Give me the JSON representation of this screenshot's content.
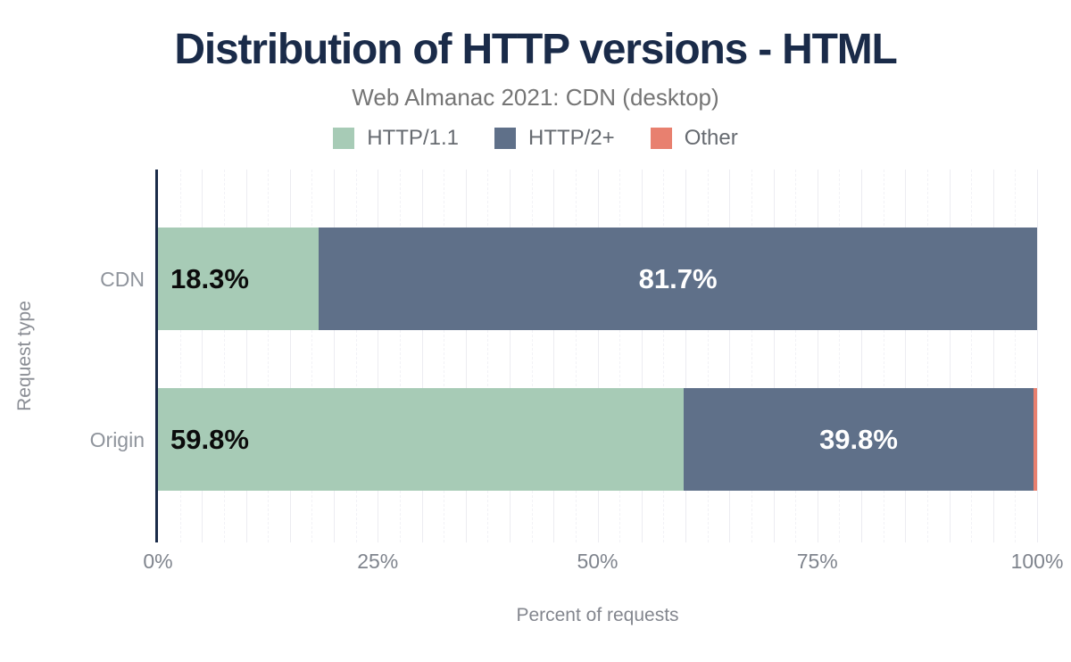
{
  "chart_data": {
    "type": "bar",
    "orientation": "horizontal-stacked",
    "title": "Distribution of HTTP versions - HTML",
    "subtitle": "Web Almanac 2021: CDN (desktop)",
    "xlabel": "Percent of requests",
    "ylabel": "Request type",
    "categories": [
      "CDN",
      "Origin"
    ],
    "series": [
      {
        "name": "HTTP/1.1",
        "color": "#a7cbb6",
        "values": [
          18.3,
          59.8
        ],
        "labels": [
          "18.3%",
          "59.8%"
        ],
        "label_color": "#0b0b0b",
        "label_align": "start"
      },
      {
        "name": "HTTP/2+",
        "color": "#5f7089",
        "values": [
          81.7,
          39.8
        ],
        "labels": [
          "81.7%",
          "39.8%"
        ],
        "label_color": "#ffffff",
        "label_align": "center"
      },
      {
        "name": "Other",
        "color": "#e8806f",
        "values": [
          0.0,
          0.4
        ],
        "labels": [
          "",
          ""
        ],
        "label_color": "#ffffff",
        "label_align": "center"
      }
    ],
    "x_ticks": [
      {
        "value": 0,
        "label": "0%"
      },
      {
        "value": 25,
        "label": "25%"
      },
      {
        "value": 50,
        "label": "50%"
      },
      {
        "value": 75,
        "label": "75%"
      },
      {
        "value": 100,
        "label": "100%"
      }
    ],
    "xlim": [
      0,
      100
    ],
    "grid": {
      "on": true,
      "minor_step_pct": 2.5,
      "major_step_pct": 5,
      "legend_position": "top"
    }
  },
  "colors": {
    "title_text": "#1a2b49",
    "axis_line": "#1a2b49",
    "subtitle_text": "#757575",
    "tick_text": "#7f848d",
    "category_text": "#8f949c",
    "grid_major": "#ececf1",
    "grid_minor": "#f2f2f6"
  }
}
